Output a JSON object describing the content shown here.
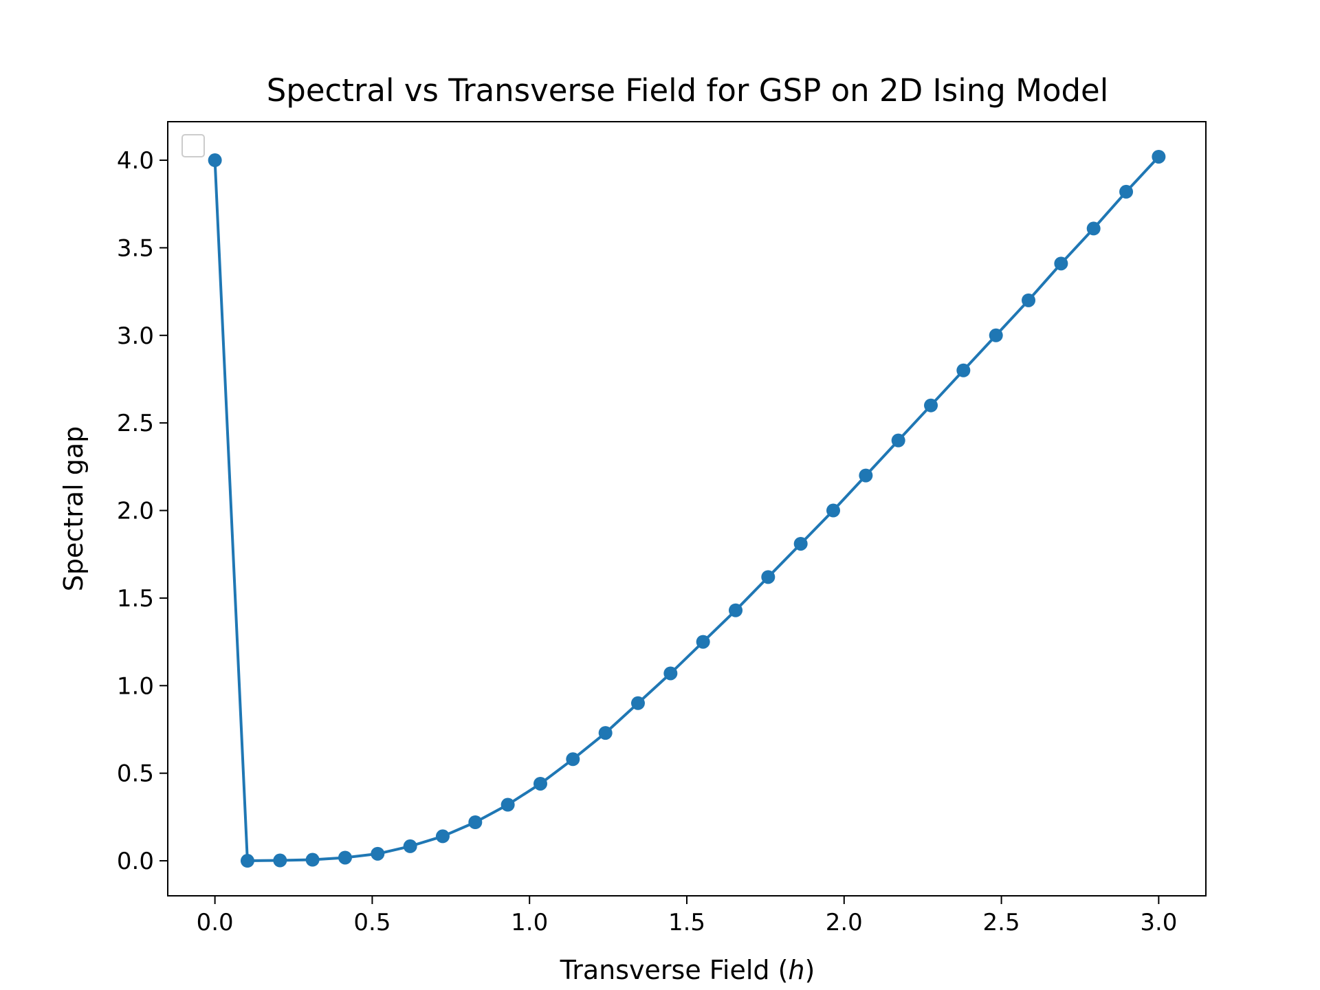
{
  "chart_data": {
    "type": "line",
    "title": "Spectral vs Transverse Field for GSP on 2D Ising Model",
    "xlabel_main": "Transverse Field (",
    "xlabel_var": "h",
    "xlabel_close": ")",
    "ylabel": "Spectral gap",
    "xlim": [
      -0.15,
      3.15
    ],
    "ylim": [
      -0.2,
      4.22
    ],
    "xticks": [
      "0.0",
      "0.5",
      "1.0",
      "1.5",
      "2.0",
      "2.5",
      "3.0"
    ],
    "yticks": [
      "0.0",
      "0.5",
      "1.0",
      "1.5",
      "2.0",
      "2.5",
      "3.0",
      "3.5",
      "4.0"
    ],
    "legend": "top-left (empty)",
    "grid": false,
    "color": "#1f77b4",
    "series": [
      {
        "x": [
          0.0,
          0.1034,
          0.2069,
          0.3103,
          0.4138,
          0.5172,
          0.6207,
          0.7241,
          0.8276,
          0.931,
          1.0345,
          1.1379,
          1.2414,
          1.3448,
          1.4483,
          1.5517,
          1.6552,
          1.7586,
          1.8621,
          1.9655,
          2.069,
          2.1724,
          2.2759,
          2.3793,
          2.4828,
          2.5862,
          2.6897,
          2.7931,
          2.8966,
          3.0
        ],
        "y": [
          4.0,
          0.0,
          0.002,
          0.006,
          0.018,
          0.04,
          0.083,
          0.14,
          0.22,
          0.32,
          0.44,
          0.58,
          0.73,
          0.9,
          1.07,
          1.25,
          1.43,
          1.62,
          1.81,
          2.0,
          2.2,
          2.4,
          2.6,
          2.8,
          3.0,
          3.2,
          3.41,
          3.61,
          3.82,
          4.02
        ]
      }
    ]
  }
}
